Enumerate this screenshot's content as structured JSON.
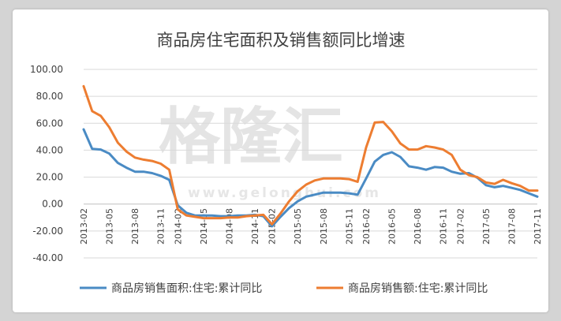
{
  "chart_data": {
    "type": "line",
    "title": "商品房住宅面积及销售额同比增速",
    "xlabel": "",
    "ylabel": "",
    "ylim": [
      -40,
      100
    ],
    "yticks": [
      "100.00",
      "80.00",
      "60.00",
      "40.00",
      "20.00",
      "0.00",
      "-20.00",
      "-40.00"
    ],
    "x_tick_labels": [
      "2013-02",
      "2013-05",
      "2013-08",
      "2013-11",
      "2014-02",
      "2014-05",
      "2014-08",
      "2014-11",
      "2015-02",
      "2015-05",
      "2015-08",
      "2015-11",
      "2016-02",
      "2016-05",
      "2016-08",
      "2016-11",
      "2017-02",
      "2017-05",
      "2017-08",
      "2017-11"
    ],
    "x": [
      "2013-02",
      "2013-03",
      "2013-04",
      "2013-05",
      "2013-06",
      "2013-07",
      "2013-08",
      "2013-09",
      "2013-10",
      "2013-11",
      "2013-12",
      "2014-02",
      "2014-03",
      "2014-04",
      "2014-05",
      "2014-06",
      "2014-07",
      "2014-08",
      "2014-09",
      "2014-10",
      "2014-11",
      "2014-12",
      "2015-02",
      "2015-03",
      "2015-04",
      "2015-05",
      "2015-06",
      "2015-07",
      "2015-08",
      "2015-09",
      "2015-10",
      "2015-11",
      "2015-12",
      "2016-02",
      "2016-03",
      "2016-04",
      "2016-05",
      "2016-06",
      "2016-07",
      "2016-08",
      "2016-09",
      "2016-10",
      "2016-11",
      "2016-12",
      "2017-02",
      "2017-03",
      "2017-04",
      "2017-05",
      "2017-06",
      "2017-07",
      "2017-08",
      "2017-09",
      "2017-10",
      "2017-11"
    ],
    "series": [
      {
        "name": "商品房销售面积:住宅:累计同比",
        "color": "#4a8bc4",
        "values": [
          55.5,
          41,
          40.5,
          37.5,
          30.5,
          27,
          24,
          24,
          23,
          21,
          18,
          -1,
          -6.5,
          -8.5,
          -8.5,
          -8.5,
          -9,
          -9,
          -8.5,
          -8.5,
          -8,
          -9,
          -16.5,
          -9.5,
          -3,
          2,
          5.5,
          7,
          8.5,
          8.5,
          8.5,
          8,
          7,
          19,
          31.5,
          36.5,
          38.5,
          35,
          28,
          27,
          25.5,
          27.5,
          27,
          24,
          22.5,
          23,
          19.5,
          14,
          12.5,
          13.5,
          12,
          10.5,
          8,
          5.5
        ]
      },
      {
        "name": "商品房销售额:住宅:累计同比",
        "color": "#ed7d31",
        "values": [
          87.5,
          69,
          65.5,
          57,
          45.5,
          39,
          34.5,
          33,
          32,
          30,
          25.5,
          -4,
          -8.5,
          -9.5,
          -10.5,
          -10.5,
          -10.5,
          -10,
          -10,
          -9,
          -8.5,
          -8,
          -15,
          -7,
          2,
          9.5,
          14.5,
          17.5,
          19,
          19,
          19,
          18.5,
          16.5,
          42,
          60.5,
          61,
          54,
          45,
          40.5,
          40.5,
          43,
          42,
          40.5,
          36.5,
          25.5,
          21.5,
          20,
          16,
          15,
          18,
          15.5,
          13.5,
          10,
          10
        ]
      }
    ],
    "legend": {
      "position": "bottom"
    },
    "grid": {
      "horizontal": true,
      "vertical": false
    }
  },
  "watermark": {
    "main_text": "格隆汇",
    "url_text": "www.gelonghui.com"
  }
}
